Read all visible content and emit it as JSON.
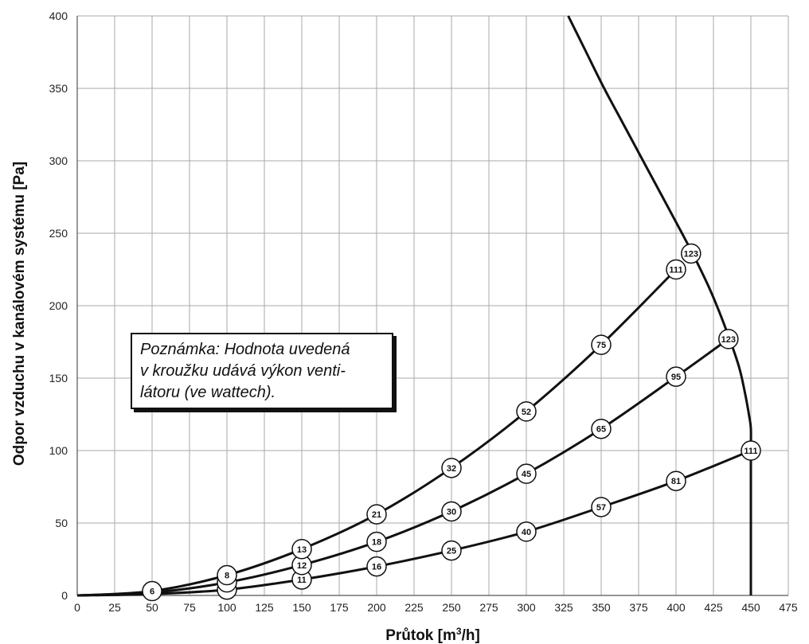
{
  "chart_data": {
    "type": "line",
    "title": "",
    "xlabel_main": "Průtok [m",
    "xlabel_sup": "3",
    "xlabel_tail": "/h]",
    "ylabel": "Odpor vzduchu v kanálovém systému [Pa]",
    "xlim": [
      0,
      475
    ],
    "ylim": [
      0,
      400
    ],
    "x_ticks": [
      "0",
      "25",
      "50",
      "75",
      "100",
      "125",
      "150",
      "175",
      "200",
      "225",
      "250",
      "275",
      "300",
      "325",
      "350",
      "375",
      "400",
      "425",
      "450",
      "475"
    ],
    "y_ticks": [
      "0",
      "50",
      "100",
      "150",
      "200",
      "250",
      "300",
      "350",
      "400"
    ],
    "grid": true,
    "legend": "none",
    "series": [
      {
        "curve": [
          [
            0,
            0
          ],
          [
            50,
            3
          ],
          [
            100,
            14
          ],
          [
            150,
            32
          ],
          [
            200,
            56
          ],
          [
            250,
            88
          ],
          [
            300,
            127
          ],
          [
            350,
            173
          ],
          [
            400,
            225
          ]
        ],
        "markers": [
          {
            "x": 50,
            "y": 3,
            "label": "6"
          },
          {
            "x": 100,
            "y": 14,
            "label": "8"
          },
          {
            "x": 150,
            "y": 32,
            "label": "13"
          },
          {
            "x": 200,
            "y": 56,
            "label": "21"
          },
          {
            "x": 250,
            "y": 88,
            "label": "32"
          },
          {
            "x": 300,
            "y": 127,
            "label": "52"
          },
          {
            "x": 350,
            "y": 173,
            "label": "75"
          },
          {
            "x": 400,
            "y": 225,
            "label": "111"
          }
        ]
      },
      {
        "curve": [
          [
            0,
            0
          ],
          [
            50,
            2
          ],
          [
            100,
            9
          ],
          [
            150,
            21
          ],
          [
            200,
            37
          ],
          [
            250,
            58
          ],
          [
            300,
            84
          ],
          [
            350,
            115
          ],
          [
            400,
            151
          ],
          [
            435,
            177
          ]
        ],
        "markers": [
          {
            "x": 100,
            "y": 9,
            "label": ""
          },
          {
            "x": 150,
            "y": 21,
            "label": "12"
          },
          {
            "x": 200,
            "y": 37,
            "label": "18"
          },
          {
            "x": 250,
            "y": 58,
            "label": "30"
          },
          {
            "x": 300,
            "y": 84,
            "label": "45"
          },
          {
            "x": 350,
            "y": 115,
            "label": "65"
          },
          {
            "x": 400,
            "y": 151,
            "label": "95"
          },
          {
            "x": 435,
            "y": 177,
            "label": "123"
          }
        ]
      },
      {
        "curve": [
          [
            0,
            0
          ],
          [
            50,
            1
          ],
          [
            100,
            4
          ],
          [
            150,
            11
          ],
          [
            200,
            20
          ],
          [
            250,
            31
          ],
          [
            300,
            44
          ],
          [
            350,
            61
          ],
          [
            400,
            79
          ],
          [
            450,
            100
          ]
        ],
        "markers": [
          {
            "x": 100,
            "y": 4,
            "label": ""
          },
          {
            "x": 150,
            "y": 11,
            "label": "11"
          },
          {
            "x": 200,
            "y": 20,
            "label": "16"
          },
          {
            "x": 250,
            "y": 31,
            "label": "25"
          },
          {
            "x": 300,
            "y": 44,
            "label": "40"
          },
          {
            "x": 350,
            "y": 61,
            "label": "57"
          },
          {
            "x": 400,
            "y": 79,
            "label": "81"
          },
          {
            "x": 450,
            "y": 100,
            "label": "111"
          }
        ]
      }
    ],
    "limit_curve": [
      [
        328,
        400
      ],
      [
        340,
        375
      ],
      [
        352,
        350
      ],
      [
        365,
        325
      ],
      [
        378,
        300
      ],
      [
        391,
        275
      ],
      [
        404,
        250
      ],
      [
        414,
        230
      ],
      [
        424,
        208
      ],
      [
        434,
        182
      ],
      [
        442,
        158
      ],
      [
        446,
        140
      ],
      [
        449,
        123
      ],
      [
        450,
        115
      ],
      [
        450,
        100
      ],
      [
        450,
        50
      ],
      [
        450,
        0
      ]
    ],
    "limit_markers": [
      {
        "x": 410,
        "y": 236,
        "label": "123"
      }
    ],
    "annotation": [
      "Poznámka: Hodnota uvedená",
      "v kroužku udává výkon venti-",
      "látoru (ve wattech)."
    ]
  }
}
